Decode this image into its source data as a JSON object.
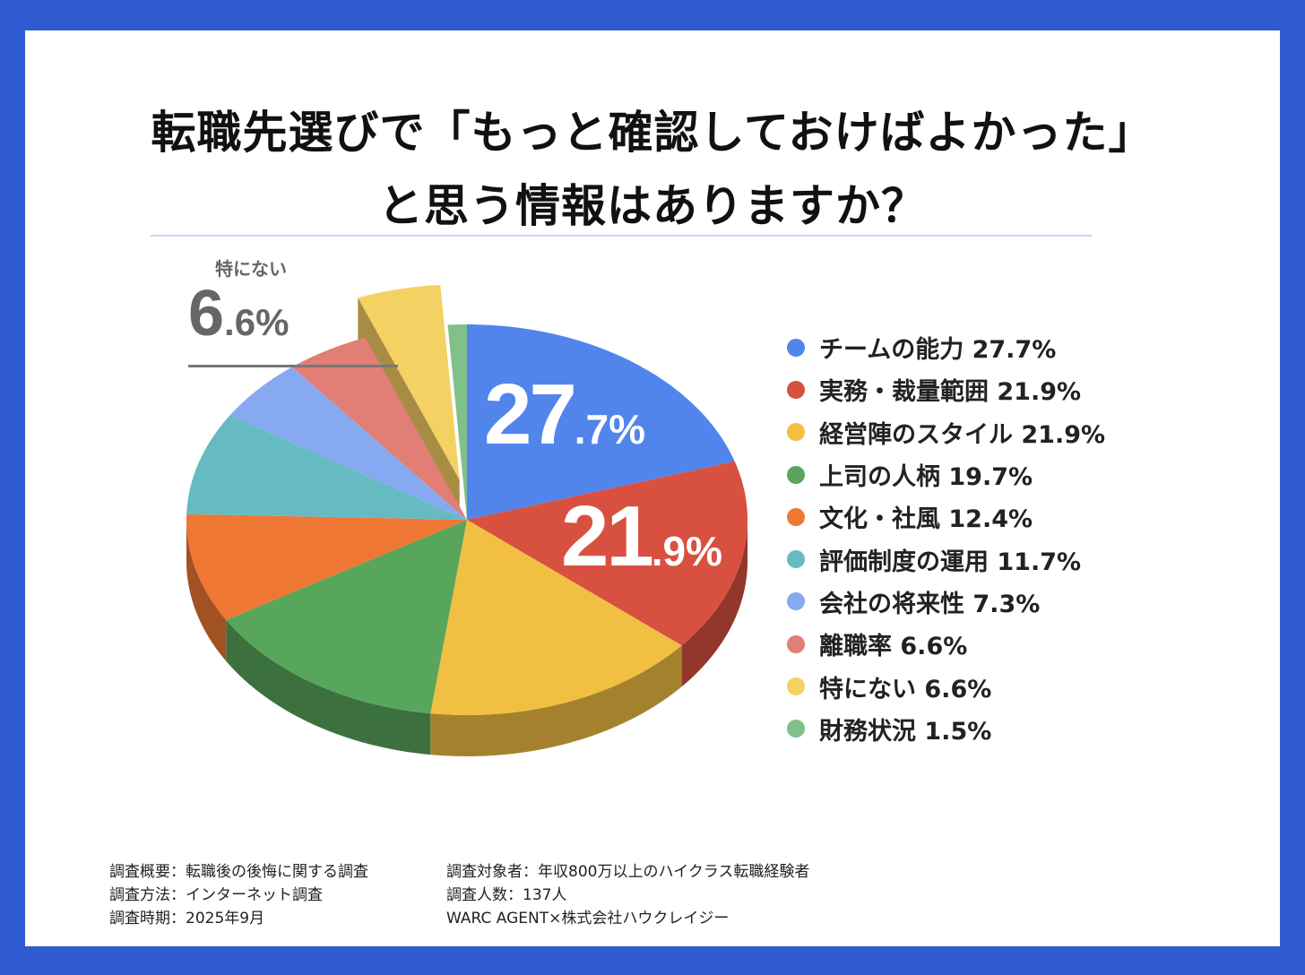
{
  "chart_data": {
    "type": "pie",
    "style": "3d-exploded",
    "title_lines": [
      "転職先選びで「もっと確認しておけばよかった」",
      "と思う情報はありますか？"
    ],
    "start": "top",
    "direction": "clockwise",
    "slices": [
      {
        "label": "チームの能力",
        "value": 27.7,
        "color": "#5185ec"
      },
      {
        "label": "実務・裁量範囲",
        "value": 21.9,
        "color": "#d85140"
      },
      {
        "label": "経営陣のスタイル",
        "value": 21.9,
        "color": "#f1bf42"
      },
      {
        "label": "上司の人柄",
        "value": 19.7,
        "color": "#58a65c"
      },
      {
        "label": "文化・社風",
        "value": 12.4,
        "color": "#ee7733"
      },
      {
        "label": "評価制度の運用",
        "value": 11.7,
        "color": "#66bbc3"
      },
      {
        "label": "会社の将来性",
        "value": 7.3,
        "color": "#86a9f1"
      },
      {
        "label": "離職率",
        "value": 6.6,
        "color": "#e17e75"
      },
      {
        "label": "特にない",
        "value": 6.6,
        "color": "#f5d062",
        "exploded": true
      },
      {
        "label": "財務状況",
        "value": 1.5,
        "color": "#82c08a"
      }
    ],
    "legend_position": "right",
    "legend_text": [
      "チームの能力 27.7%",
      "実務・裁量範囲 21.9%",
      "経営陣のスタイル 21.9%",
      "上司の人柄 19.7%",
      "文化・社風 12.4%",
      "評価制度の運用 11.7%",
      "会社の将来性 7.3%",
      "離職率 6.6%",
      "特にない 6.6%",
      "財務状況 1.5%"
    ],
    "big_labels": [
      {
        "int": "27",
        "dec": ".7%"
      },
      {
        "int": "21",
        "dec": ".9%"
      }
    ],
    "callout": {
      "label": "特にない",
      "int": "6",
      "dec": ".6%"
    }
  },
  "footer": {
    "left": [
      "調査概要：転職後の後悔に関する調査",
      "調査方法：インターネット調査",
      "調査時期：2025年9月"
    ],
    "right": [
      "調査対象者：年収800万以上のハイクラス転職経験者",
      "調査人数：137人",
      "WARC AGENT×株式会社ハウクレイジー"
    ]
  }
}
